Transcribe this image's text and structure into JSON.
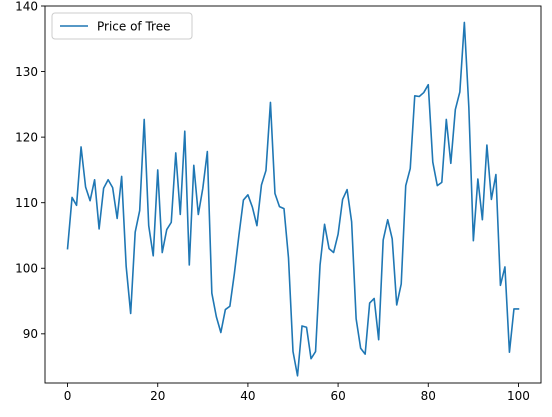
{
  "chart_data": {
    "type": "line",
    "title": "",
    "xlabel": "",
    "ylabel": "",
    "xlim": [
      -5,
      105
    ],
    "ylim": [
      82.5,
      140
    ],
    "x_ticks": [
      0,
      20,
      40,
      60,
      80,
      100
    ],
    "y_ticks": [
      90,
      100,
      110,
      120,
      130,
      140
    ],
    "grid": false,
    "legend_position": "top-left",
    "series": [
      {
        "name": "Price of Tree",
        "color": "#1f77b4",
        "x": [
          0,
          1,
          2,
          3,
          4,
          5,
          6,
          7,
          8,
          9,
          10,
          11,
          12,
          13,
          14,
          15,
          16,
          17,
          18,
          19,
          20,
          21,
          22,
          23,
          24,
          25,
          26,
          27,
          28,
          29,
          30,
          31,
          32,
          33,
          34,
          35,
          36,
          37,
          38,
          39,
          40,
          41,
          42,
          43,
          44,
          45,
          46,
          47,
          48,
          49,
          50,
          51,
          52,
          53,
          54,
          55,
          56,
          57,
          58,
          59,
          60,
          61,
          62,
          63,
          64,
          65,
          66,
          67,
          68,
          69,
          70,
          71,
          72,
          73,
          74,
          75,
          76,
          77,
          78,
          79,
          80,
          81,
          82,
          83,
          84,
          85,
          86,
          87,
          88,
          89,
          90,
          91,
          92,
          93,
          94,
          95,
          96,
          97,
          98,
          99,
          100
        ],
        "values": [
          103,
          110.8,
          109.6,
          118.5,
          112.4,
          110.3,
          113.5,
          106,
          112.2,
          113.5,
          112.3,
          107.6,
          114,
          100.3,
          93.1,
          105.5,
          108.8,
          122.7,
          106.5,
          101.9,
          115,
          102.4,
          105.9,
          107,
          117.6,
          108.2,
          120.9,
          100.5,
          115.7,
          108.2,
          112.2,
          117.8,
          96.2,
          92.6,
          90.2,
          93.7,
          94.2,
          99.2,
          105,
          110.4,
          111.2,
          109.3,
          106.5,
          112.7,
          114.9,
          125.3,
          111.4,
          109.4,
          109.1,
          101.6,
          87.3,
          83.6,
          91.2,
          91,
          86.2,
          87.3,
          100.5,
          106.7,
          103,
          102.4,
          105.2,
          110.5,
          112,
          107.1,
          92.3,
          87.8,
          86.9,
          94.7,
          95.4,
          89.1,
          104.3,
          107.4,
          104.5,
          94.4,
          97.6,
          112.6,
          115.2,
          126.3,
          126.2,
          126.8,
          128,
          116.2,
          112.6,
          113.1,
          122.7,
          116,
          124.2,
          126.9,
          137.5,
          124.5,
          104.2,
          113.6,
          107.4,
          118.8,
          110.5,
          114.3,
          97.4,
          100.2,
          87.2,
          93.8,
          93.8
        ]
      }
    ]
  }
}
